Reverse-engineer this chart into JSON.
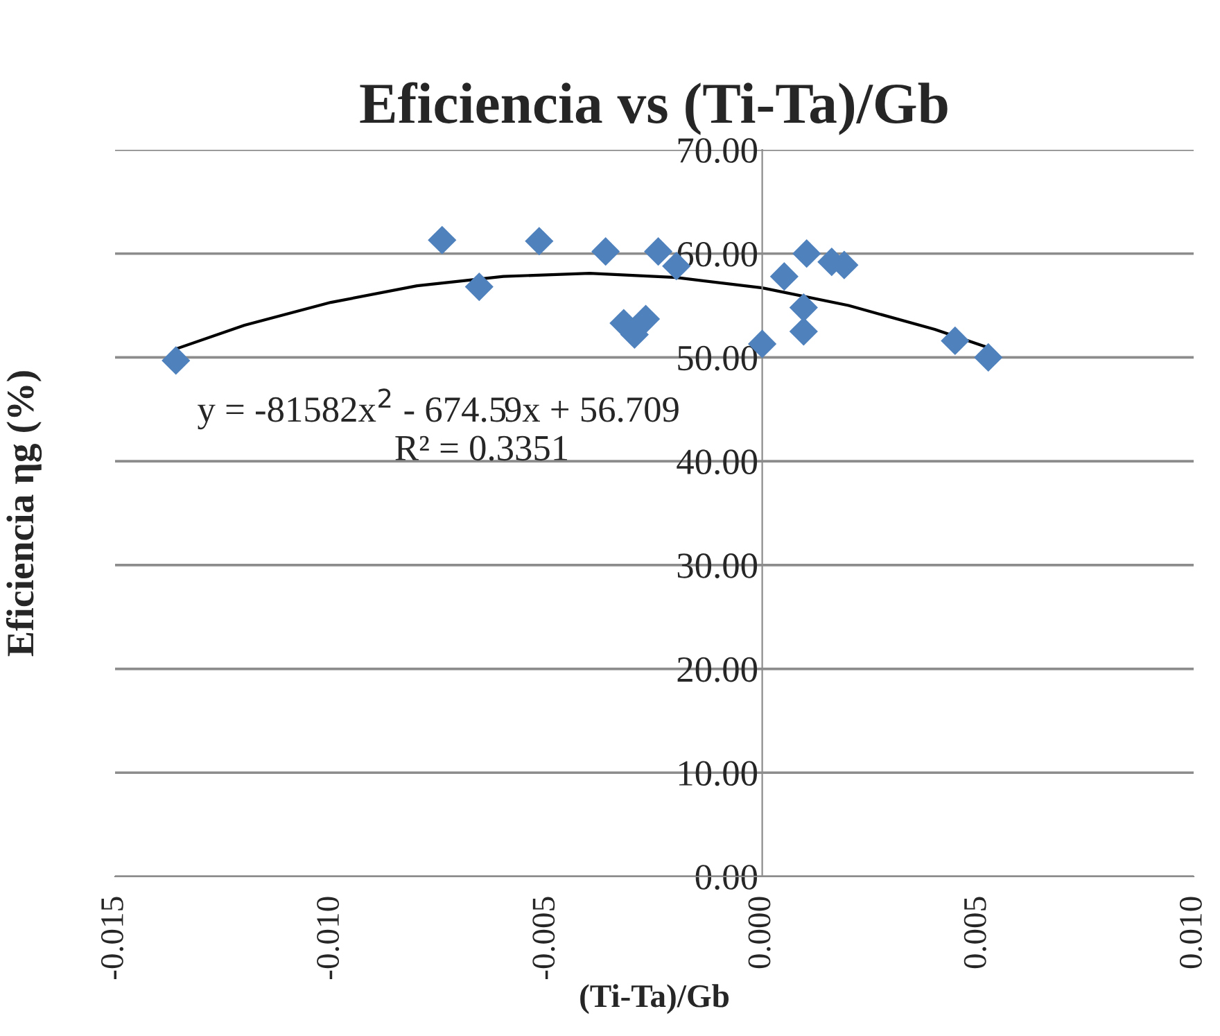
{
  "chart_data": {
    "type": "scatter",
    "title": "Eficiencia vs (Ti-Ta)/Gb",
    "xlabel": "(Ti-Ta)/Gb",
    "ylabel": "Eficiencia ηg (%)",
    "xlim": [
      -0.015,
      0.01
    ],
    "xticks": [
      {
        "value": -0.015,
        "label": "-0.015"
      },
      {
        "value": -0.01,
        "label": "-0.010"
      },
      {
        "value": -0.005,
        "label": "-0.005"
      },
      {
        "value": 0,
        "label": "0.000"
      },
      {
        "value": 0.005,
        "label": "0.005"
      },
      {
        "value": 0.01,
        "label": "0.010"
      }
    ],
    "ylim": [
      0,
      70
    ],
    "yticks": [
      {
        "value": 0,
        "label": "0.00"
      },
      {
        "value": 10,
        "label": "10.00"
      },
      {
        "value": 20,
        "label": "20.00"
      },
      {
        "value": 30,
        "label": "30.00"
      },
      {
        "value": 40,
        "label": "40.00"
      },
      {
        "value": 50,
        "label": "50.00"
      },
      {
        "value": 60,
        "label": "60.00"
      },
      {
        "value": 70,
        "label": "70.00"
      }
    ],
    "grid": "y",
    "series": [
      {
        "marker": "diamond",
        "color": "#4f81bd",
        "x": [
          -0.01359,
          -0.00742,
          -0.00656,
          -0.00517,
          -0.00363,
          -0.00321,
          -0.00296,
          -0.0027,
          -0.00241,
          -0.00199,
          0.0,
          0.00051,
          0.00096,
          0.00096,
          0.00103,
          0.00161,
          0.0019,
          0.00447,
          0.00524
        ],
        "values": [
          49.7,
          61.3,
          56.8,
          61.2,
          60.2,
          53.3,
          52.2,
          53.7,
          60.2,
          58.8,
          51.3,
          57.8,
          54.8,
          52.5,
          60.0,
          59.2,
          58.9,
          51.6,
          50.0
        ]
      },
      {
        "type": "line",
        "color": "#000000",
        "x": [
          -0.0136,
          -0.012,
          -0.01,
          -0.008,
          -0.006,
          -0.004,
          -0.002,
          0.0,
          0.002,
          0.004,
          0.0052
        ],
        "values": [
          50.8,
          53.1,
          55.3,
          56.9,
          57.8,
          58.1,
          57.7,
          56.7,
          55.0,
          52.7,
          51.0
        ]
      }
    ],
    "annotations": [
      "y = -81582x$^{2}$ - 674.59x + 56.709",
      "R² = 0.3351"
    ]
  }
}
